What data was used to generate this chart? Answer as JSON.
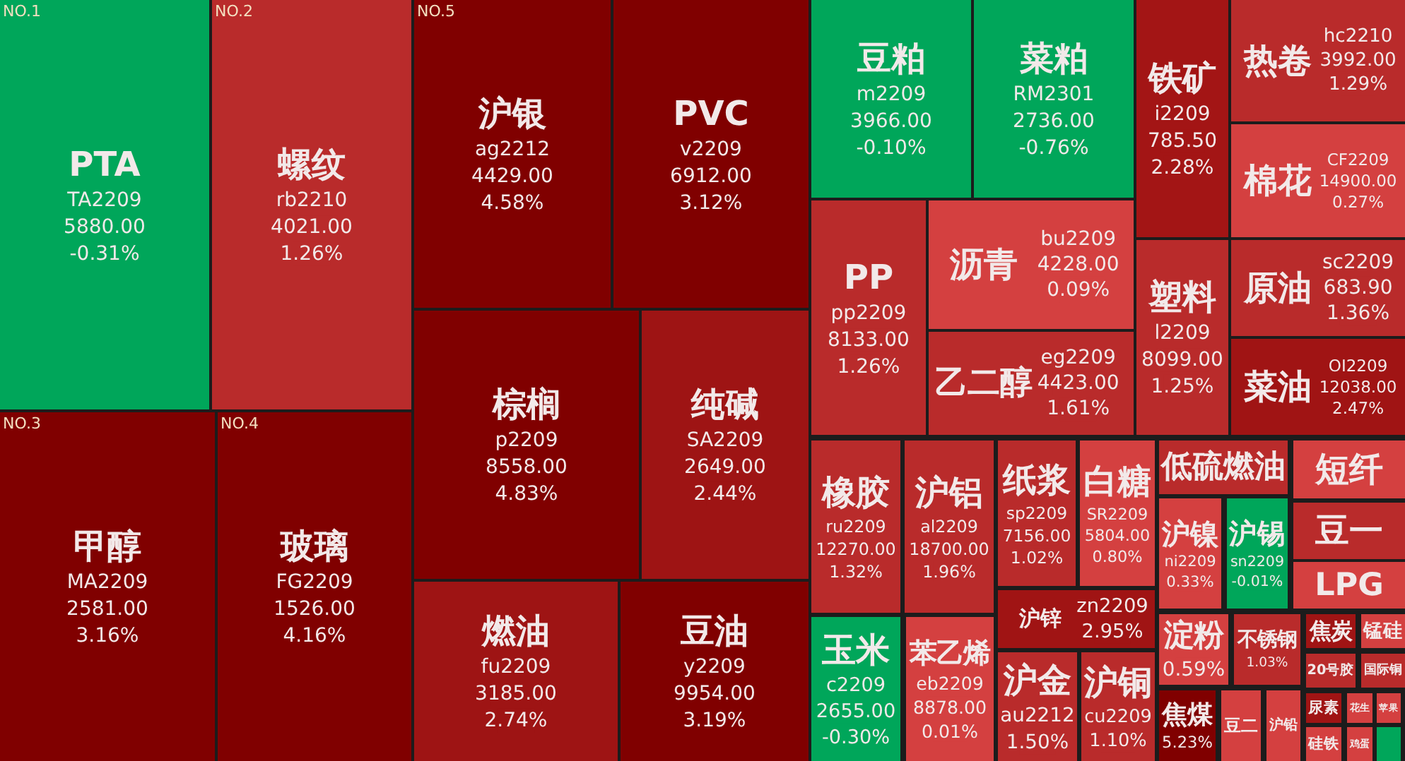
{
  "chart_data": {
    "type": "other",
    "categories": [
      "PTA\nTA2209",
      "螺纹\nrb2210",
      "甲醇\nMA2209",
      "玻璃\nFG2209",
      "沪银\nag2212",
      "PVC\nv2209",
      "棕榈\np2209",
      "纯碱\nSA2209",
      "燃油\nfu2209",
      "豆油\ny2209",
      "豆粕\nm2209",
      "菜粕\nRM2301",
      "铁矿\ni2209",
      "热卷\nhc2210",
      "棉花\nCF2209",
      "PP\npp2209",
      "沥青\nbu2209",
      "乙二醇\neg2209",
      "塑料\nl2209",
      "原油\nsc2209",
      "菜油\nOI2209",
      "橡胶\nru2209",
      "沪铝\nal2209",
      "纸浆\nsp2209",
      "白糖\nSR2209",
      "沪锌\nzn2209",
      "玉米\nc2209",
      "苯乙烯\neb2209",
      "沪金\nau2212",
      "沪铜\ncu2209",
      "低硫燃油",
      "短纤",
      "沪镍\nni2209",
      "沪锡\nsn2209",
      "豆一",
      "LPG",
      "淀粉",
      "不锈钢",
      "焦炭",
      "锰硅",
      "20号胶",
      "国际铜",
      "焦煤",
      "豆二",
      "沪铅",
      "尿素",
      "花生",
      "苹果",
      "硅铁",
      "鸡蛋",
      null
    ],
    "series": [
      {
        "values": [
          5880,
          4021,
          2581,
          1526,
          4429,
          6912,
          8558,
          2649,
          3185,
          9954,
          3966,
          2736,
          785.5,
          3992,
          14900,
          8133,
          4228,
          4423,
          8099,
          683.9,
          12038,
          12270,
          18700,
          7156,
          5804,
          null,
          2655,
          8878,
          null,
          null,
          null,
          null,
          null,
          null,
          null,
          null,
          null,
          null,
          null,
          null,
          null,
          null,
          null,
          null,
          null,
          null,
          null,
          null,
          null,
          null,
          null
        ],
        "value_labels": [
          "5880.00",
          "4021.00",
          "2581.00",
          "1526.00",
          "4429.00",
          "6912.00",
          "8558.00",
          "2649.00",
          "3185.00",
          "9954.00",
          "3966.00",
          "2736.00",
          "785.50",
          "3992.00",
          "14900.00",
          "8133.00",
          "4228.00",
          "4423.00",
          "8099.00",
          "683.90",
          "12038.00",
          "12270.00",
          "18700.00",
          "7156.00",
          "5804.00",
          null,
          "2655.00",
          "8878.00",
          null,
          null,
          null,
          null,
          null,
          null,
          null,
          null,
          null,
          null,
          null,
          null,
          null,
          null,
          null,
          null,
          null,
          null,
          null,
          null,
          null,
          null,
          null
        ],
        "colors": [
          "#00a65a",
          "#b92b2b",
          "#800000",
          "#800000",
          "#800000",
          "#800000",
          "#800000",
          "#9e1414",
          "#9e1414",
          "#800000",
          "#00a65a",
          "#00a65a",
          "#a31515",
          "#b92b2b",
          "#d44040",
          "#b92b2b",
          "#d44040",
          "#b92b2b",
          "#b92b2b",
          "#b92b2b",
          "#a01414",
          "#b92b2b",
          "#b92b2b",
          "#b92b2b",
          "#d44040",
          null,
          "#00a65a",
          "#d44040",
          null,
          null,
          null,
          null,
          null,
          null,
          null,
          null,
          null,
          null,
          null,
          null,
          null,
          null,
          null,
          null,
          null,
          null,
          null,
          null,
          null,
          null,
          null
        ]
      },
      {
        "values": [
          -0.31,
          1.26,
          3.16,
          4.16,
          4.58,
          3.12,
          4.83,
          2.44,
          2.74,
          3.19,
          -0.1,
          -0.76,
          2.28,
          1.29,
          0.27,
          1.26,
          0.09,
          1.61,
          1.25,
          1.36,
          2.47,
          1.32,
          1.96,
          1.02,
          0.8,
          2.95,
          -0.3,
          0.01,
          1.5,
          1.1,
          null,
          null,
          0.33,
          -0.01,
          null,
          null,
          0.59,
          1.03,
          null,
          null,
          null,
          null,
          5.23,
          null,
          null,
          null,
          null,
          null,
          null,
          null,
          null
        ],
        "value_labels": [
          "-0.31%",
          "1.26%",
          "3.16%",
          "4.16%",
          "4.58%",
          "3.12%",
          "4.83%",
          "2.44%",
          "2.74%",
          "3.19%",
          "-0.10%",
          "-0.76%",
          "2.28%",
          "1.29%",
          "0.27%",
          "1.26%",
          "0.09%",
          "1.61%",
          "1.25%",
          "1.36%",
          "2.47%",
          "1.32%",
          "1.96%",
          "1.02%",
          "0.80%",
          "2.95%",
          "-0.30%",
          "0.01%",
          "1.50%",
          "1.10%",
          null,
          null,
          "0.33%",
          "-0.01%",
          null,
          null,
          "0.59%",
          "1.03%",
          null,
          null,
          null,
          null,
          "5.23%",
          null,
          null,
          null,
          null,
          null,
          null,
          null,
          null
        ],
        "colors": [
          "#00a65a",
          "#b92b2b",
          "#800000",
          "#800000",
          "#800000",
          "#800000",
          "#800000",
          "#9e1414",
          "#9e1414",
          "#800000",
          "#00a65a",
          "#00a65a",
          "#a31515",
          "#b92b2b",
          "#d44040",
          "#b92b2b",
          "#d44040",
          "#b92b2b",
          "#b92b2b",
          "#b92b2b",
          "#a01414",
          "#b92b2b",
          "#b92b2b",
          "#b92b2b",
          "#d44040",
          "#a01414",
          "#00a65a",
          "#d44040",
          "#b92b2b",
          "#b92b2b",
          null,
          null,
          "#d44040",
          "#00a65a",
          null,
          null,
          "#d44040",
          "#b92b2b",
          null,
          null,
          null,
          null,
          "#800000",
          null,
          null,
          null,
          null,
          null,
          null,
          null,
          null
        ]
      }
    ],
    "colors": [
      null,
      null,
      null,
      null,
      null,
      null,
      null,
      null,
      null,
      null,
      null,
      null,
      null,
      null,
      null,
      null,
      null,
      null,
      null,
      null,
      null,
      null,
      null,
      null,
      null,
      null,
      null,
      null,
      null,
      null,
      "#b92b2b",
      "#d44040",
      null,
      null,
      "#b92b2b",
      "#d44040",
      null,
      null,
      "#a01414",
      "#d44040",
      "#b92b2b",
      "#b92b2b",
      null,
      "#d44040",
      "#d44040",
      "#a01414",
      "#d44040",
      "#d44040",
      "#d44040",
      "#d44040",
      "#00a65a"
    ],
    "annotations": [
      "NO.1",
      "NO.2",
      "NO.3",
      "NO.4",
      "NO.5"
    ]
  }
}
